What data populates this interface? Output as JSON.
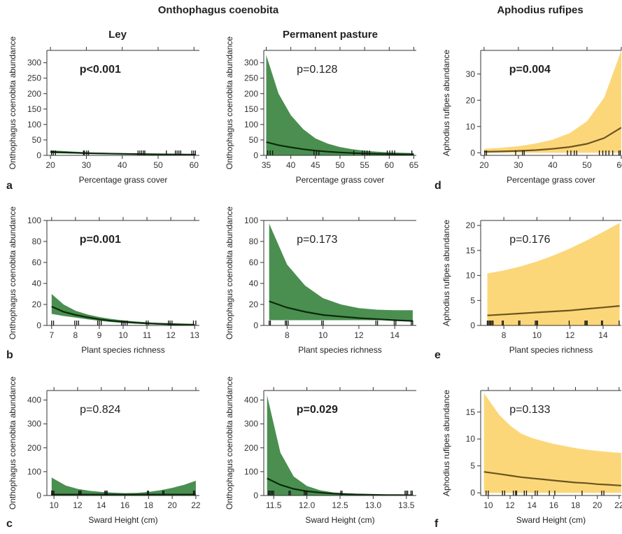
{
  "headers": {
    "species1": "Onthophagus coenobita",
    "species2": "Aphodius rufipes",
    "col_ley": "Ley",
    "col_pasture": "Permanent pasture"
  },
  "panel_letters": [
    "a",
    "b",
    "c",
    "d",
    "e",
    "f"
  ],
  "colors": {
    "green": "#4a8f50",
    "green_line": "#0b2a0b",
    "yellow": "#fcd77a",
    "yellow_line": "#6b5520"
  },
  "chart_data": [
    {
      "id": "ley-grass",
      "type": "line",
      "letter": "a",
      "fill": "green",
      "ylabel": "Onthophagus coenobita abundance",
      "xlabel": "Percentage grass cover",
      "xlim": [
        19,
        61.5
      ],
      "ylim": [
        0,
        340
      ],
      "xticks": [
        20,
        30,
        40,
        50,
        60
      ],
      "yticks": [
        0,
        50,
        100,
        150,
        200,
        250,
        300
      ],
      "p_text": "p<0.001",
      "p_bold": true,
      "x": [
        20,
        30,
        40,
        50,
        60.5
      ],
      "fit": [
        11,
        7,
        5,
        3.3,
        2.3
      ],
      "lower": [
        7,
        5,
        3.5,
        2.2,
        1.2
      ],
      "upper": [
        16,
        10,
        7,
        5,
        3.8
      ],
      "rug": [
        20.3,
        20.8,
        21.4,
        29.2,
        29.5,
        30.1,
        30.6,
        44.4,
        44.9,
        45.4,
        45.9,
        46.3,
        52.3,
        54.8,
        55.3,
        55.8,
        56.3,
        59.4,
        59.9,
        60.4
      ]
    },
    {
      "id": "pasture-grass",
      "type": "line",
      "fill": "green",
      "ylabel": "Onthophagus coenobita abundance",
      "xlabel": "Percentage grass cover",
      "xlim": [
        34.5,
        65.5
      ],
      "ylim": [
        0,
        340
      ],
      "xticks": [
        35,
        40,
        45,
        50,
        55,
        60,
        65
      ],
      "yticks": [
        0,
        50,
        100,
        150,
        200,
        250,
        300
      ],
      "p_text": "p=0.128",
      "p_bold": false,
      "x": [
        35,
        37.5,
        40,
        42.5,
        45,
        47.5,
        50,
        52.5,
        55,
        57.5,
        60,
        62.5,
        65
      ],
      "fit": [
        43,
        33,
        26,
        20,
        15.5,
        12,
        9.5,
        7.5,
        6,
        4.8,
        4,
        3.3,
        3
      ],
      "lower": [
        0,
        0,
        0,
        0,
        0,
        0,
        0,
        0,
        0,
        0,
        0,
        0,
        0
      ],
      "upper": [
        325,
        200,
        130,
        85,
        55,
        38,
        27,
        20,
        15,
        12,
        10,
        8.5,
        7.5
      ],
      "rug": [
        35.3,
        35.8,
        36.3,
        44.7,
        45.2,
        45.7,
        52.8,
        54.5,
        55.0,
        55.5,
        56.0,
        59.6,
        60.1,
        60.6,
        61.1,
        64.6
      ]
    },
    {
      "id": "aphodius-grass",
      "type": "line",
      "letter": "d",
      "fill": "yellow",
      "ylabel": "Aphodius rufipes abundance",
      "xlabel": "Percentage grass cover",
      "xlim": [
        19,
        60
      ],
      "ylim": [
        -1,
        39
      ],
      "xticks": [
        20,
        30,
        40,
        50,
        60
      ],
      "yticks": [
        0,
        10,
        20,
        30
      ],
      "p_text": "p=0.004",
      "p_bold": true,
      "x": [
        20,
        25,
        30,
        35,
        40,
        45,
        50,
        55,
        60
      ],
      "fit": [
        0.35,
        0.5,
        0.7,
        1.0,
        1.5,
        2.2,
        3.4,
        5.6,
        9.6
      ],
      "lower": [
        0,
        0,
        0,
        0,
        0,
        0,
        0,
        0,
        0
      ],
      "upper": [
        1.5,
        1.9,
        2.5,
        3.5,
        5,
        7.5,
        12,
        21,
        39
      ],
      "rug": [
        20.2,
        20.7,
        29.2,
        31.2,
        31.7,
        44.3,
        45.3,
        46.3,
        47.0,
        53.6,
        54.6,
        55.5,
        56.4,
        57.5,
        59.3,
        59.7
      ]
    },
    {
      "id": "ley-richness",
      "type": "line",
      "letter": "b",
      "fill": "green",
      "ylabel": "Onthophagus coenobita abundance",
      "xlabel": "Plant species richness",
      "xlim": [
        6.8,
        13.2
      ],
      "ylim": [
        0,
        100
      ],
      "xticks": [
        7,
        8,
        9,
        10,
        11,
        12,
        13
      ],
      "yticks": [
        0,
        20,
        40,
        60,
        80,
        100
      ],
      "p_text": "p=0.001",
      "p_bold": true,
      "x": [
        7,
        7.5,
        8,
        8.5,
        9,
        9.5,
        10,
        10.5,
        11,
        11.5,
        12,
        12.5,
        13
      ],
      "fit": [
        18,
        13,
        10,
        7.8,
        5.9,
        4.5,
        3.4,
        2.6,
        2,
        1.5,
        1.1,
        0.8,
        0.6
      ],
      "lower": [
        11,
        9,
        7.5,
        5.8,
        4.4,
        3.3,
        2.4,
        1.7,
        1.1,
        0.7,
        0.4,
        0.2,
        0.1
      ],
      "upper": [
        30,
        20,
        14,
        10.5,
        8,
        6.2,
        4.8,
        3.8,
        3,
        2.5,
        2.1,
        1.8,
        1.5
      ],
      "rug": [
        7.0,
        7.08,
        7.97,
        8.05,
        8.13,
        8.93,
        9.0,
        9.08,
        9.93,
        10.0,
        10.08,
        10.17,
        10.97,
        11.05,
        11.9,
        11.97,
        12.05,
        12.95,
        13.05
      ]
    },
    {
      "id": "pasture-richness",
      "type": "line",
      "fill": "green",
      "ylabel": "Onthophagus coenobita abundance",
      "xlabel": "Plant species richness",
      "xlim": [
        6.7,
        15.2
      ],
      "ylim": [
        0,
        100
      ],
      "xticks": [
        8,
        10,
        12,
        14
      ],
      "yticks": [
        0,
        20,
        40,
        60,
        80,
        100
      ],
      "p_text": "p=0.173",
      "p_bold": false,
      "x": [
        7,
        8,
        9,
        10,
        11,
        12,
        13,
        14,
        15
      ],
      "fit": [
        23,
        17,
        13,
        10,
        8.5,
        7,
        6,
        5,
        4.3
      ],
      "lower": [
        5,
        5,
        5,
        5,
        5,
        5,
        5,
        5,
        5
      ],
      "upper": [
        97,
        58,
        38,
        26,
        20,
        16.5,
        15,
        14.5,
        14.5
      ],
      "rug": [
        7.0,
        7.07,
        7.9,
        7.97,
        8.06,
        9.93,
        10.02,
        12.95,
        13.04,
        13.97,
        14.06,
        14.92,
        15.0
      ]
    },
    {
      "id": "aphodius-richness",
      "type": "line",
      "letter": "e",
      "fill": "yellow",
      "ylabel": "Aphodius rufipes abundance",
      "xlabel": "Plant species richness",
      "xlim": [
        6.6,
        15.1
      ],
      "ylim": [
        0,
        21
      ],
      "xticks": [
        8,
        10,
        12,
        14
      ],
      "yticks": [
        0,
        5,
        10,
        15,
        20
      ],
      "p_text": "p=0.176",
      "p_bold": false,
      "x": [
        7,
        8,
        9,
        10,
        11,
        12,
        13,
        14,
        15
      ],
      "fit": [
        2,
        2.2,
        2.4,
        2.6,
        2.8,
        3,
        3.3,
        3.6,
        3.9
      ],
      "lower": [
        0,
        0,
        0,
        0,
        0,
        0,
        0,
        0,
        0
      ],
      "upper": [
        10.4,
        11,
        11.8,
        12.8,
        14,
        15.4,
        17,
        18.7,
        20.5
      ],
      "rug": [
        7.0,
        7.07,
        7.14,
        7.21,
        7.28,
        7.35,
        7.9,
        7.97,
        8.9,
        8.97,
        9.9,
        9.97,
        10.04,
        11.95,
        12.9,
        12.97,
        13.04,
        13.9,
        13.97,
        14.97
      ]
    },
    {
      "id": "ley-sward",
      "type": "line",
      "letter": "c",
      "fill": "green",
      "ylabel": "Onthophagus coenobita abundance",
      "xlabel": "Sward Height (cm)",
      "xlim": [
        9.4,
        22.3
      ],
      "ylim": [
        0,
        440
      ],
      "xticks": [
        10,
        12,
        14,
        16,
        18,
        20,
        22
      ],
      "yticks": [
        0,
        100,
        200,
        300,
        400
      ],
      "p_text": "p=0.824",
      "p_bold": false,
      "x": [
        9.8,
        11,
        12,
        13,
        14,
        15,
        16,
        17,
        18,
        19,
        20,
        21,
        22
      ],
      "fit": [
        4,
        4,
        4,
        4,
        4,
        4,
        4,
        4,
        4,
        4,
        4,
        4,
        4
      ],
      "lower": [
        0,
        0,
        0,
        0,
        0,
        0,
        0,
        0,
        0,
        0,
        0,
        0,
        0
      ],
      "upper": [
        75,
        42,
        28,
        20,
        15,
        12,
        10,
        11,
        15,
        22,
        32,
        45,
        62
      ],
      "rug": [
        9.8,
        9.9,
        10.0,
        12.1,
        12.2,
        12.3,
        14.3,
        14.4,
        14.5,
        17.9,
        18.0,
        19.2,
        19.3,
        21.8,
        21.9
      ]
    },
    {
      "id": "pasture-sward",
      "type": "line",
      "fill": "green",
      "ylabel": "Onthophagus coenobita abundance",
      "xlabel": "Sward Height (cm)",
      "xlim": [
        11.35,
        13.65
      ],
      "ylim": [
        0,
        440
      ],
      "xticks": [
        11.5,
        12.0,
        12.5,
        13.0,
        13.5
      ],
      "yticks": [
        0,
        100,
        200,
        300,
        400
      ],
      "p_text": "p=0.029",
      "p_bold": true,
      "x": [
        11.4,
        11.6,
        11.8,
        12.0,
        12.2,
        12.4,
        12.6,
        12.8,
        13.0,
        13.2,
        13.4,
        13.6
      ],
      "fit": [
        72,
        45,
        28,
        18,
        12,
        8,
        5.5,
        4,
        3,
        2.2,
        1.7,
        1.3
      ],
      "lower": [
        0,
        0,
        0,
        0,
        0,
        0,
        0,
        0,
        0,
        0,
        0,
        0
      ],
      "upper": [
        420,
        180,
        80,
        40,
        22,
        13,
        9,
        6.5,
        5,
        4,
        3.3,
        2.8
      ],
      "rug": [
        11.42,
        11.44,
        11.46,
        11.48,
        11.5,
        11.73,
        11.75,
        11.96,
        11.98,
        12.0,
        12.51,
        12.53,
        13.48,
        13.5,
        13.52,
        13.57,
        13.59
      ]
    },
    {
      "id": "aphodius-sward",
      "type": "line",
      "letter": "f",
      "fill": "yellow",
      "ylabel": "Aphodius rufipes abundance",
      "xlabel": "Sward Height (cm)",
      "xlim": [
        9.3,
        22.2
      ],
      "ylim": [
        -0.5,
        19
      ],
      "xticks": [
        10,
        12,
        14,
        16,
        18,
        20,
        22
      ],
      "yticks": [
        0,
        5,
        10,
        15
      ],
      "p_text": "p=0.133",
      "p_bold": false,
      "x": [
        9.6,
        11,
        12,
        13,
        14,
        15,
        16,
        17,
        18,
        19,
        20,
        21,
        22.2
      ],
      "fit": [
        3.9,
        3.5,
        3.2,
        2.9,
        2.7,
        2.5,
        2.3,
        2.1,
        1.9,
        1.8,
        1.6,
        1.5,
        1.35
      ],
      "lower": [
        0,
        0,
        0,
        0,
        0,
        0,
        0,
        0,
        0,
        0,
        0,
        0,
        0
      ],
      "upper": [
        18.5,
        14.5,
        12.5,
        11,
        10.2,
        9.6,
        9.1,
        8.7,
        8.3,
        8,
        7.8,
        7.6,
        7.4
      ],
      "rug": [
        9.8,
        10.0,
        11.3,
        11.5,
        12.3,
        12.5,
        12.6,
        13.3,
        13.5,
        14.3,
        14.5,
        15.6,
        16.1,
        18.6,
        20.4,
        20.6
      ]
    }
  ]
}
